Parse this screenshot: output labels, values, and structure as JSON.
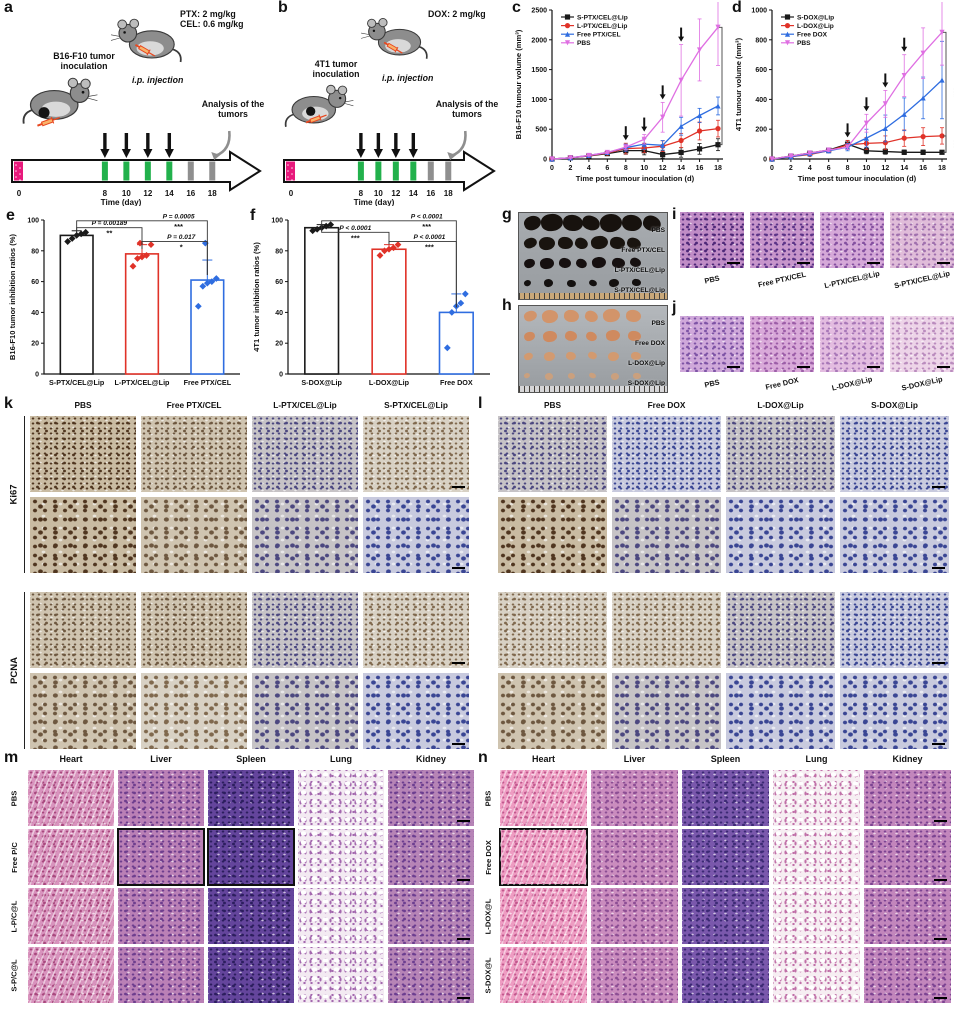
{
  "panel_a": {
    "label": "a",
    "tumor_line1": "B16-F10 tumor",
    "tumor_line2": "inoculation",
    "dose_line1": "PTX: 2 mg/kg",
    "dose_line2": "CEL: 0.6 mg/kg",
    "injection_label": "i.p. injection",
    "analysis_line1": "Analysis of the",
    "analysis_line2": "tumors",
    "timeline": {
      "ticks": [
        0,
        8,
        10,
        12,
        14,
        16,
        18
      ],
      "injection_days": [
        8,
        10,
        12,
        14
      ],
      "analysis_days": [
        16,
        18
      ],
      "axis_label": "Time (day)",
      "start_color": "#e8197c",
      "injection_color": "#22b14c",
      "analysis_color": "#8f8f8f"
    }
  },
  "panel_b": {
    "label": "b",
    "tumor_line1": "4T1 tumor",
    "tumor_line2": "inoculation",
    "dose_line1": "DOX: 2 mg/kg",
    "dose_line2": "",
    "injection_label": "i.p. injection",
    "analysis_line1": "Analysis of the",
    "analysis_line2": "tumors",
    "timeline": {
      "ticks": [
        0,
        8,
        10,
        12,
        14,
        16,
        18
      ],
      "injection_days": [
        8,
        10,
        12,
        14
      ],
      "analysis_days": [
        16,
        18
      ],
      "axis_label": "Time (day)",
      "start_color": "#e8197c",
      "injection_color": "#22b14c",
      "analysis_color": "#8f8f8f"
    }
  },
  "chart_data": [
    {
      "panel": "c",
      "type": "line",
      "xlabel": "Time post tumour inoculation (d)",
      "ylabel": "B16-F10 tumour volume (mm³)",
      "xlim": [
        0,
        18
      ],
      "ylim": [
        0,
        2500
      ],
      "xticks": [
        0,
        2,
        4,
        6,
        8,
        10,
        12,
        14,
        16,
        18
      ],
      "yticks": [
        0,
        500,
        1000,
        1500,
        2000,
        2500
      ],
      "x": [
        0,
        2,
        4,
        6,
        8,
        10,
        12,
        14,
        16,
        18
      ],
      "series": [
        {
          "name": "S-PTX/CEL@Lip",
          "color": "#1a1a1a",
          "marker": "square",
          "values": [
            0,
            20,
            50,
            90,
            140,
            140,
            75,
            110,
            170,
            240
          ],
          "err": [
            0,
            5,
            10,
            20,
            60,
            70,
            60,
            80,
            90,
            100
          ]
        },
        {
          "name": "L-PTX/CEL@Lip",
          "color": "#e03228",
          "marker": "circle",
          "values": [
            0,
            20,
            55,
            100,
            175,
            185,
            215,
            310,
            470,
            510
          ],
          "err": [
            0,
            5,
            10,
            20,
            90,
            80,
            90,
            120,
            150,
            140
          ]
        },
        {
          "name": "Free PTX/CEL",
          "color": "#2f6de0",
          "marker": "triangle",
          "values": [
            0,
            20,
            60,
            110,
            190,
            250,
            230,
            550,
            730,
            890
          ],
          "err": [
            0,
            5,
            10,
            20,
            60,
            90,
            80,
            150,
            120,
            150
          ]
        },
        {
          "name": "PBS",
          "color": "#df6fe2",
          "marker": "triangle-down",
          "values": [
            0,
            20,
            60,
            110,
            200,
            330,
            700,
            1320,
            1830,
            2210
          ],
          "err": [
            0,
            5,
            10,
            20,
            40,
            80,
            250,
            600,
            520,
            640
          ]
        }
      ],
      "arrow_days": [
        8,
        10,
        12,
        14
      ],
      "sig": [
        {
          "pair": [
            3,
            0
          ],
          "stars": "***"
        }
      ]
    },
    {
      "panel": "d",
      "type": "line",
      "xlabel": "Time post tumour inoculation (d)",
      "ylabel": "4T1 tumour volume (mm³)",
      "xlim": [
        0,
        18
      ],
      "ylim": [
        0,
        1000
      ],
      "xticks": [
        0,
        2,
        4,
        6,
        8,
        10,
        12,
        14,
        16,
        18
      ],
      "yticks": [
        0,
        200,
        400,
        600,
        800,
        1000
      ],
      "x": [
        0,
        2,
        4,
        6,
        8,
        10,
        12,
        14,
        16,
        18
      ],
      "series": [
        {
          "name": "S-DOX@Lip",
          "color": "#1a1a1a",
          "marker": "square",
          "values": [
            0,
            20,
            40,
            60,
            100,
            55,
            50,
            45,
            45,
            45
          ],
          "err": [
            0,
            4,
            6,
            10,
            25,
            20,
            18,
            15,
            15,
            12
          ]
        },
        {
          "name": "L-DOX@Lip",
          "color": "#e03228",
          "marker": "circle",
          "values": [
            0,
            15,
            30,
            55,
            95,
            105,
            110,
            140,
            150,
            155
          ],
          "err": [
            0,
            4,
            6,
            10,
            30,
            40,
            45,
            55,
            60,
            55
          ]
        },
        {
          "name": "Free DOX",
          "color": "#2f6de0",
          "marker": "triangle",
          "values": [
            0,
            15,
            35,
            55,
            80,
            140,
            205,
            300,
            410,
            530
          ],
          "err": [
            0,
            4,
            6,
            10,
            25,
            60,
            90,
            110,
            140,
            260
          ]
        },
        {
          "name": "PBS",
          "color": "#df6fe2",
          "marker": "triangle-down",
          "values": [
            0,
            20,
            40,
            60,
            80,
            240,
            370,
            560,
            710,
            850
          ],
          "err": [
            0,
            5,
            8,
            10,
            15,
            60,
            90,
            140,
            170,
            220
          ]
        }
      ],
      "arrow_days": [
        8,
        10,
        12,
        14
      ],
      "sig": [
        {
          "pair": [
            3,
            0
          ],
          "stars": "***"
        },
        {
          "pair": [
            1,
            0
          ],
          "stars": "***"
        }
      ]
    },
    {
      "panel": "e",
      "type": "bar",
      "ylabel": "B16-F10 tumor inhibition ratios (%)",
      "ylim": [
        0,
        100
      ],
      "yticks": [
        0,
        20,
        40,
        60,
        80,
        100
      ],
      "categories": [
        "S-PTX/CEL@Lip",
        "L-PTX/CEL@Lip",
        "Free PTX/CEL"
      ],
      "values": [
        90,
        78,
        61
      ],
      "errors": [
        3,
        6,
        13
      ],
      "colors": [
        "#1a1a1a",
        "#e03228",
        "#2f6de0"
      ],
      "points": [
        [
          86,
          88,
          90,
          91,
          92
        ],
        [
          70,
          75,
          76,
          77,
          84,
          85
        ],
        [
          44,
          57,
          59,
          60,
          62,
          85
        ]
      ],
      "annotations": [
        {
          "a": 0,
          "b": 1,
          "y": 95,
          "t": 0.5,
          "label": "P = 0.00189",
          "stars": "**"
        },
        {
          "a": 0,
          "b": 2,
          "y": 99.5,
          "t": 0.78,
          "label": "P = 0.0005",
          "stars": "***"
        },
        {
          "a": 1,
          "b": 2,
          "y": 86,
          "t": 0.6,
          "label": "P = 0.017",
          "stars": "*"
        }
      ]
    },
    {
      "panel": "f",
      "type": "bar",
      "ylabel": "4T1 tumor inhibition ratios (%)",
      "ylim": [
        0,
        100
      ],
      "yticks": [
        0,
        20,
        40,
        60,
        80,
        100
      ],
      "categories": [
        "S-DOX@Lip",
        "L-DOX@Lip",
        "Free DOX"
      ],
      "values": [
        95,
        81,
        40
      ],
      "errors": [
        2,
        3,
        12
      ],
      "colors": [
        "#1a1a1a",
        "#e03228",
        "#2f6de0"
      ],
      "points": [
        [
          93,
          94,
          95,
          96,
          97
        ],
        [
          77,
          80,
          81,
          82,
          84
        ],
        [
          17,
          40,
          44,
          46,
          52
        ]
      ],
      "annotations": [
        {
          "a": 0,
          "b": 1,
          "y": 92,
          "t": 0.5,
          "label": "P < 0.0001",
          "stars": "***"
        },
        {
          "a": 0,
          "b": 2,
          "y": 99.5,
          "t": 0.78,
          "label": "P < 0.0001",
          "stars": "***"
        },
        {
          "a": 1,
          "b": 2,
          "y": 86,
          "t": 0.6,
          "label": "P < 0.0001",
          "stars": "***"
        }
      ]
    }
  ],
  "panel_g": {
    "label": "g",
    "bg": "#a8acb0",
    "ruler": "#c9a87a",
    "rows": [
      {
        "label": "PBS",
        "count": 7,
        "size": 16,
        "color": "#17120e"
      },
      {
        "label": "Free PTX/CEL",
        "count": 7,
        "size": 12,
        "color": "#19140f"
      },
      {
        "label": "L-PTX/CEL@Lip",
        "count": 7,
        "size": 10,
        "color": "#161010"
      },
      {
        "label": "S-PTX/CEL@Lip",
        "count": 6,
        "size": 7,
        "color": "#141110"
      }
    ]
  },
  "panel_h": {
    "label": "h",
    "bg": "#b4b8bc",
    "ruler": "#d6d6d8",
    "rows": [
      {
        "label": "PBS",
        "count": 6,
        "size": 12,
        "color": "#d2946a"
      },
      {
        "label": "Free DOX",
        "count": 6,
        "size": 10,
        "color": "#cf8a5f"
      },
      {
        "label": "L-DOX@Lip",
        "count": 6,
        "size": 8,
        "color": "#d29a70"
      },
      {
        "label": "S-DOX@Lip",
        "count": 6,
        "size": 6,
        "color": "#caa07e"
      }
    ]
  },
  "panel_i": {
    "label": "i",
    "items": [
      {
        "label": "PBS",
        "tint": "heI1"
      },
      {
        "label": "Free PTX/CEL",
        "tint": "heI2"
      },
      {
        "label": "L-PTX/CEL@Lip",
        "tint": "heI3"
      },
      {
        "label": "S-PTX/CEL@Lip",
        "tint": "heI4"
      }
    ]
  },
  "panel_j": {
    "label": "j",
    "items": [
      {
        "label": "PBS",
        "tint": "heJ1"
      },
      {
        "label": "Free DOX",
        "tint": "heJ2"
      },
      {
        "label": "L-DOX@Lip",
        "tint": "heJ3"
      },
      {
        "label": "S-DOX@Lip",
        "tint": "heJ4"
      }
    ]
  },
  "panel_k": {
    "label": "k",
    "col_headers": [
      "PBS",
      "Free PTX/CEL",
      "L-PTX/CEL@Lip",
      "S-PTX/CEL@Lip"
    ],
    "row_groups": [
      {
        "label": "Ki67",
        "from": 0,
        "to": 1
      },
      {
        "label": "PCNA",
        "from": 2,
        "to": 3
      }
    ],
    "rows": [
      {
        "tints": [
          "ihcBrown",
          "ihcTan",
          "ihcTanBlue",
          "ihcPale"
        ]
      },
      {
        "tints": [
          "ihcBrown",
          "ihcTan",
          "ihcTanBlue",
          "ihcBlue"
        ]
      },
      {
        "tints": [
          "ihcTan",
          "ihcTan",
          "ihcTanBlue",
          "ihcPale"
        ]
      },
      {
        "tints": [
          "ihcTan",
          "ihcPale",
          "ihcTanBlue",
          "ihcBlue"
        ]
      }
    ]
  },
  "panel_l": {
    "label": "l",
    "col_headers": [
      "PBS",
      "Free DOX",
      "L-DOX@Lip",
      "S-DOX@Lip"
    ],
    "rows": [
      {
        "tints": [
          "ihcTanBlue",
          "ihcBlue",
          "ihcTanBlue",
          "ihcBlue"
        ]
      },
      {
        "tints": [
          "ihcBrown",
          "ihcTanBlue",
          "ihcBlue",
          "ihcBlue"
        ]
      },
      {
        "tints": [
          "ihcPale",
          "ihcPale",
          "ihcTanBlue",
          "ihcBlue"
        ]
      },
      {
        "tints": [
          "ihcTan",
          "ihcTanBlue",
          "ihcBlue",
          "ihcBlue"
        ]
      }
    ]
  },
  "panel_m": {
    "label": "m",
    "col_headers": [
      "Heart",
      "Liver",
      "Spleen",
      "Lung",
      "Kidney"
    ],
    "row_headers": [
      "PBS",
      "Free P/C",
      "L-P/C@L",
      "S-P/C@L"
    ],
    "col_tints": [
      "mHeart",
      "mLiver",
      "mSpleen",
      "mLung",
      "mKidney"
    ],
    "boxed": [
      [
        1,
        1
      ],
      [
        1,
        2
      ]
    ]
  },
  "panel_n": {
    "label": "n",
    "col_headers": [
      "Heart",
      "Liver",
      "Spleen",
      "Lung",
      "Kidney"
    ],
    "row_headers": [
      "PBS",
      "Free DOX",
      "L-DOX@L",
      "S-DOX@L"
    ],
    "col_tints": [
      "nHeart",
      "nLiver",
      "nSpleen",
      "nLung",
      "nKidney"
    ],
    "boxed": [
      [
        1,
        0
      ]
    ]
  },
  "palette": {
    "heI1": {
      "b": "#c08cc6",
      "d": "#4e2878"
    },
    "heI2": {
      "b": "#c795cb",
      "d": "#5c3488"
    },
    "heI3": {
      "b": "#d5a8d8",
      "d": "#8450a0"
    },
    "heI4": {
      "b": "#e0bcd9",
      "d": "#a070ae"
    },
    "heJ1": {
      "b": "#cfa8da",
      "d": "#7e54a6"
    },
    "heJ2": {
      "b": "#d9a9d9",
      "d": "#9c5ea8"
    },
    "heJ3": {
      "b": "#e3bce0",
      "d": "#a878b8"
    },
    "heJ4": {
      "b": "#edd4e8",
      "d": "#ba8cbe"
    },
    "ihcBrown": {
      "b": "#c9bba2",
      "d": "#503620"
    },
    "ihcTan": {
      "b": "#cfc4b0",
      "d": "#6e5840"
    },
    "ihcTanBlue": {
      "b": "#c6c3c6",
      "d": "#4c4880"
    },
    "ihcBlue": {
      "b": "#c8cade",
      "d": "#3a4694"
    },
    "ihcPale": {
      "b": "#d8d1c4",
      "d": "#80694e"
    },
    "mHeart": {
      "b": "#d893bd",
      "d": "#a8487e"
    },
    "mLiver": {
      "b": "#ba80b6",
      "d": "#6e3e8e"
    },
    "mSpleen": {
      "b": "#64459c",
      "d": "#2c1e5e"
    },
    "mLung": {
      "b": "#f3eaf2",
      "d": "#a368ae"
    },
    "mKidney": {
      "b": "#b684b6",
      "d": "#6c3e90"
    },
    "nHeart": {
      "b": "#ee9cc2",
      "d": "#c2588e"
    },
    "nLiver": {
      "b": "#ca8cbe",
      "d": "#8c4e94"
    },
    "nSpleen": {
      "b": "#7a58ac",
      "d": "#3c2a74"
    },
    "nLung": {
      "b": "#f6eef2",
      "d": "#c070a8"
    },
    "nKidney": {
      "b": "#c286bc",
      "d": "#7c4492"
    }
  }
}
